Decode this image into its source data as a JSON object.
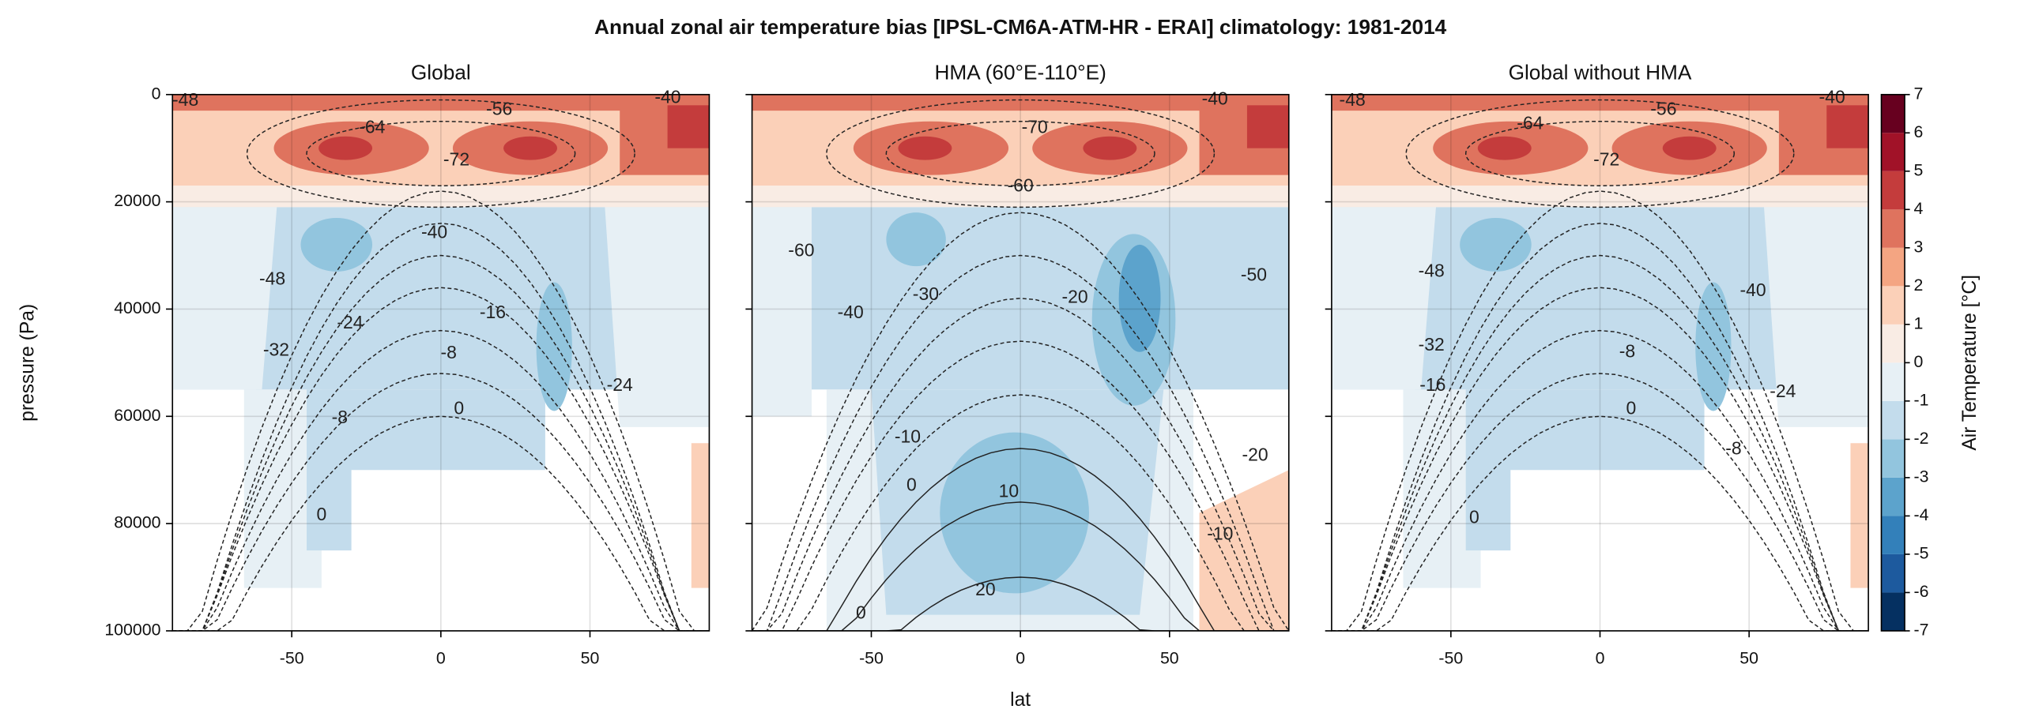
{
  "title": "Annual zonal air temperature bias [IPSL-CM6A-ATM-HR - ERAI] climatology: 1981-2014",
  "xlabel": "lat",
  "ylabel": "pressure (Pa)",
  "chart_data": [
    {
      "type": "contour",
      "title": "Global",
      "xlim": [
        -90,
        90
      ],
      "ylim": [
        100000,
        0
      ],
      "xticks": [
        -50,
        0,
        50
      ],
      "yticks": [
        0,
        20000,
        40000,
        60000,
        80000,
        100000
      ],
      "grid": true,
      "contour_labels": [
        -48,
        -56,
        -64,
        -72,
        -40,
        -48,
        -24,
        -16,
        -32,
        -8,
        -24,
        -8,
        0,
        0,
        -40
      ]
    },
    {
      "type": "contour",
      "title": "HMA (60°E-110°E)",
      "xlim": [
        -90,
        90
      ],
      "ylim": [
        100000,
        0
      ],
      "xticks": [
        -50,
        0,
        50
      ],
      "yticks": [
        0,
        20000,
        40000,
        60000,
        80000,
        100000
      ],
      "grid": true,
      "contour_labels": [
        -70,
        -60,
        -60,
        -40,
        -30,
        -20,
        -50,
        -10,
        0,
        10,
        -20,
        -10,
        20,
        0,
        -40
      ]
    },
    {
      "type": "contour",
      "title": "Global without HMA",
      "xlim": [
        -90,
        90
      ],
      "ylim": [
        100000,
        0
      ],
      "xticks": [
        -50,
        0,
        50
      ],
      "yticks": [
        0,
        20000,
        40000,
        60000,
        80000,
        100000
      ],
      "grid": true,
      "contour_labels": [
        -48,
        -64,
        -56,
        -72,
        -48,
        -40,
        -32,
        -16,
        -8,
        0,
        -24,
        -8,
        0,
        -40
      ]
    }
  ],
  "colorbar": {
    "label": "Air Temperature [°C]",
    "ticks": [
      -7,
      -6,
      -5,
      -4,
      -3,
      -2,
      -1,
      0,
      1,
      2,
      3,
      4,
      5,
      6,
      7
    ],
    "colors": [
      "#053061",
      "#1d5a9e",
      "#3380ba",
      "#5ca3cc",
      "#92c5de",
      "#c3dcec",
      "#e7f0f5",
      "#f9ece4",
      "#fbd0b8",
      "#f4a582",
      "#df735e",
      "#c43c3c",
      "#a11228",
      "#67001f"
    ]
  }
}
